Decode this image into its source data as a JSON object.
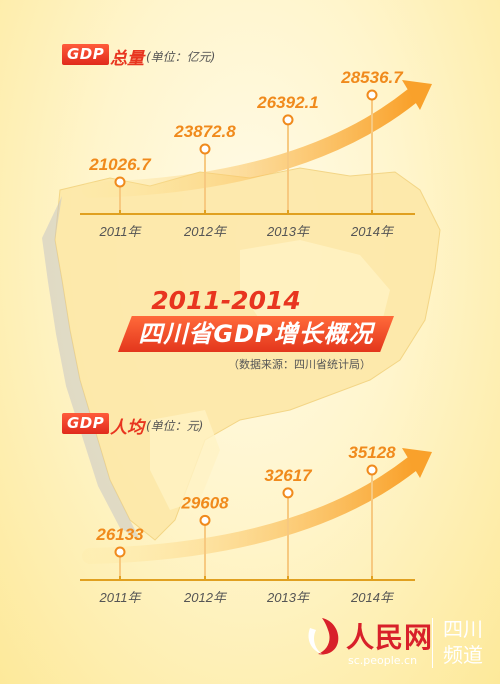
{
  "chart_data": [
    {
      "type": "line",
      "title": "GDP总量",
      "badge": "GDP",
      "title_text": "总量",
      "unit": "(单位：亿元)",
      "categories": [
        "2011年",
        "2012年",
        "2013年",
        "2014年"
      ],
      "values": [
        21026.7,
        23872.8,
        26392.1,
        28536.7
      ],
      "value_labels": [
        "21026.7",
        "23872.8",
        "26392.1",
        "28536.7"
      ],
      "colors": {
        "accent": "#e8351f",
        "values": "#f08a1c",
        "axis": "#e0a020"
      }
    },
    {
      "type": "line",
      "title": "GDP人均",
      "badge": "GDP",
      "title_text": "人均",
      "unit": "(单位：元)",
      "categories": [
        "2011年",
        "2012年",
        "2013年",
        "2014年"
      ],
      "values": [
        26133,
        29608,
        32617,
        35128
      ],
      "value_labels": [
        "26133",
        "29608",
        "32617",
        "35128"
      ],
      "colors": {
        "accent": "#e8351f",
        "values": "#f08a1c",
        "axis": "#e0a020"
      }
    }
  ],
  "heading": {
    "years": "2011-2014",
    "title": "四川省GDP增长概况",
    "source": "（数据来源：四川省统计局）"
  },
  "logo": {
    "name_cn": "人民网",
    "url": "sc.people.cn",
    "region": "四川频道"
  }
}
